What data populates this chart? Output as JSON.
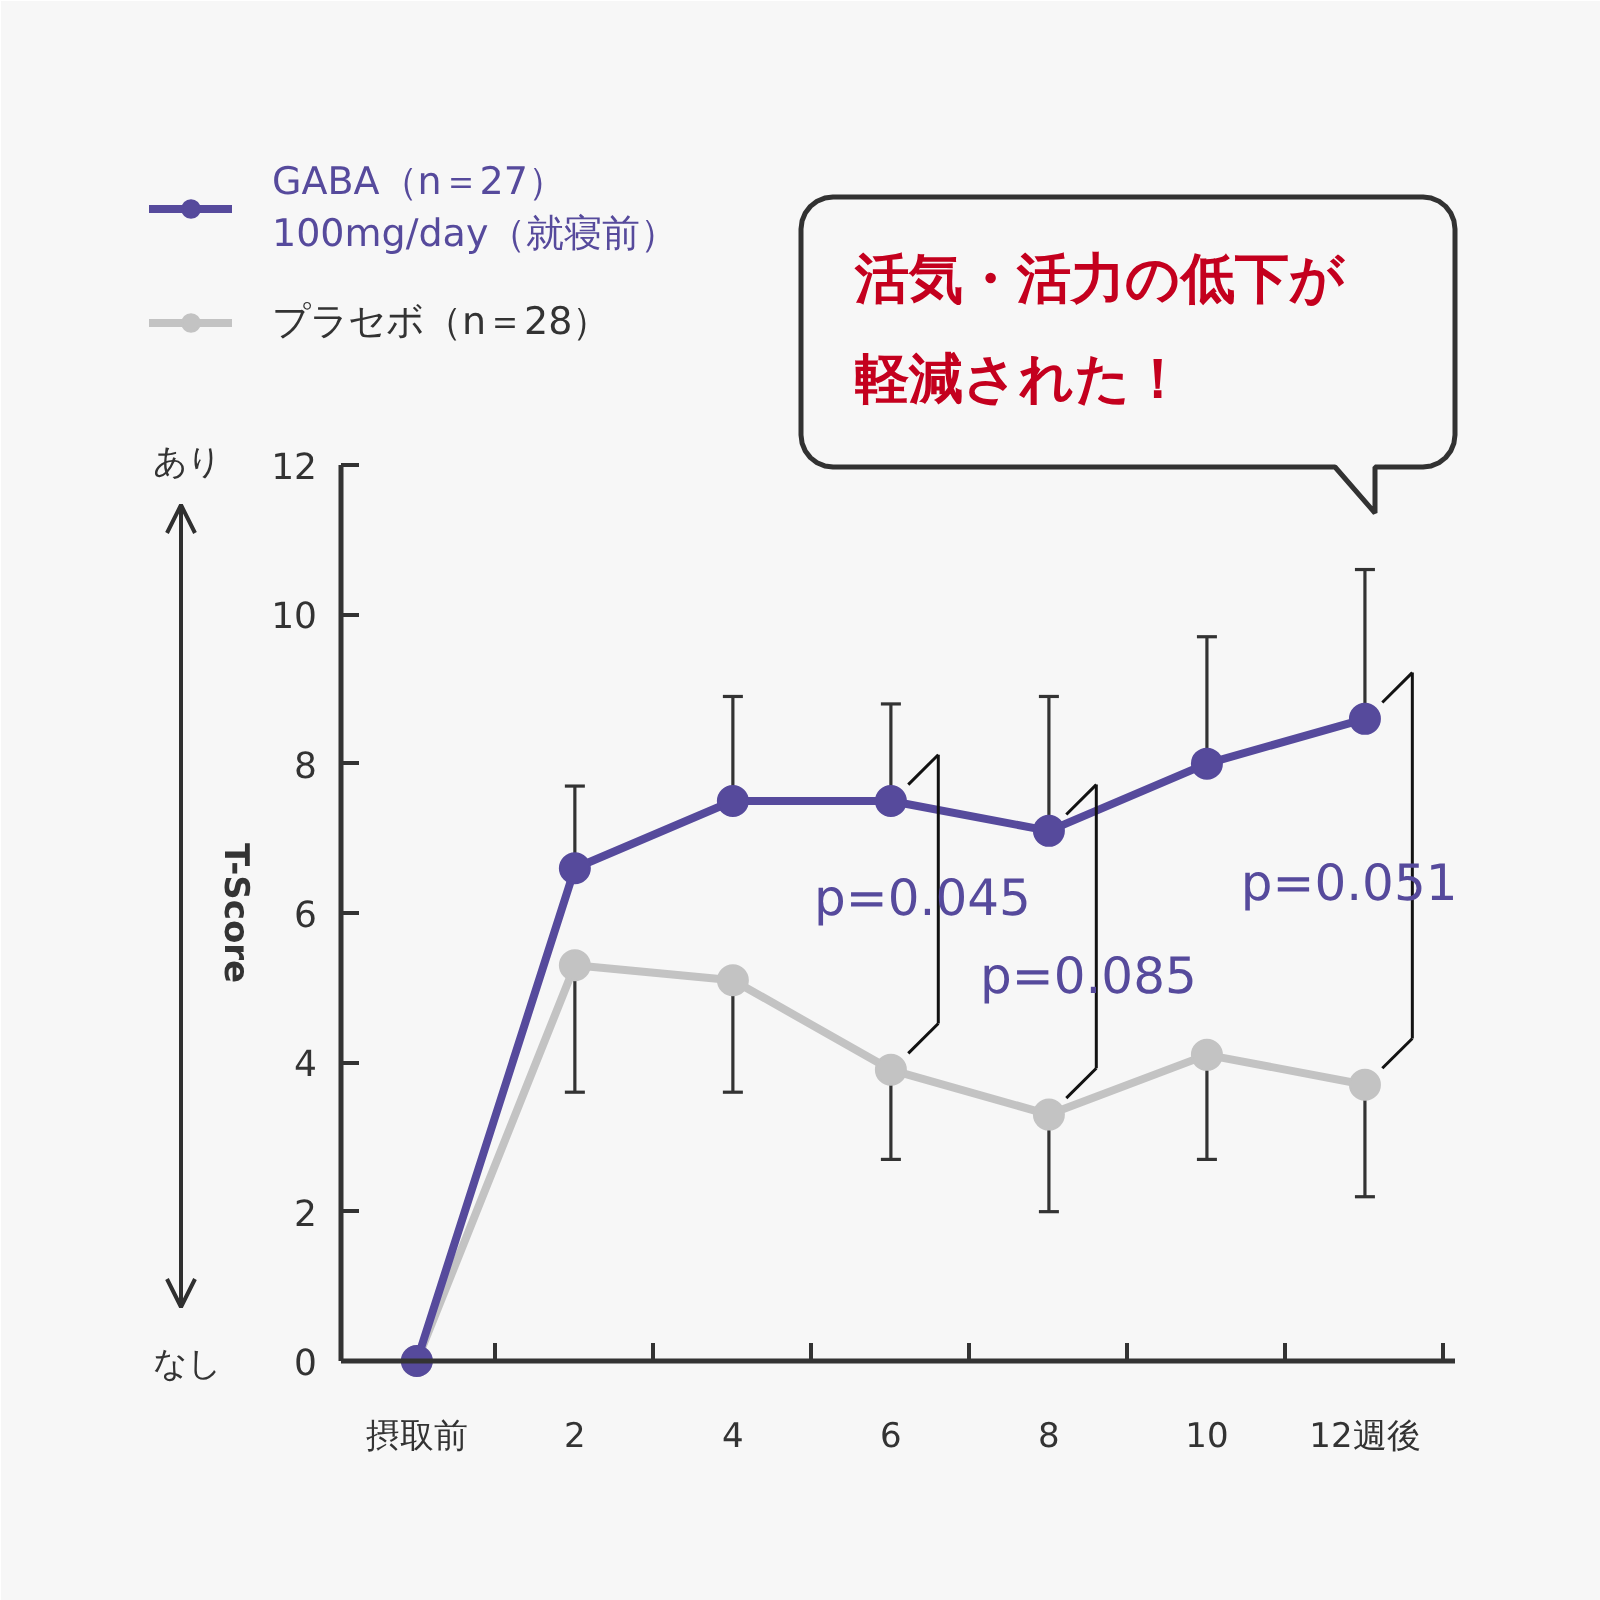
{
  "chart_data": {
    "type": "line",
    "ylabel": "T-Score",
    "categories": [
      "摂取前",
      "2",
      "4",
      "6",
      "8",
      "10",
      "12週後"
    ],
    "series": [
      {
        "name": "GABA（n＝27）\n100mg/day（就寝前）",
        "color": "#564a9c",
        "values": [
          0,
          6.6,
          7.5,
          7.5,
          7.1,
          8.0,
          8.6
        ],
        "errors": [
          null,
          [
            6.6,
            7.7
          ],
          [
            7.5,
            8.9
          ],
          [
            7.5,
            8.8
          ],
          [
            7.1,
            8.9
          ],
          [
            8.0,
            9.7
          ],
          [
            8.6,
            10.6
          ]
        ]
      },
      {
        "name": "プラセボ（n＝28）",
        "color": "#c3c3c3",
        "values": [
          0,
          5.3,
          5.1,
          3.9,
          3.3,
          4.1,
          3.7
        ],
        "errors": [
          null,
          [
            3.6,
            5.3
          ],
          [
            3.6,
            5.1
          ],
          [
            2.7,
            3.9
          ],
          [
            2.0,
            3.3
          ],
          [
            2.7,
            4.1
          ],
          [
            2.2,
            3.7
          ]
        ]
      }
    ],
    "ylim": [
      0,
      12
    ],
    "yticks": [
      0,
      2,
      4,
      6,
      8,
      10,
      12
    ],
    "grid": false,
    "legend": "top left",
    "marker": "circle",
    "line_style": "solid",
    "annotations": [
      "あり",
      "なし",
      "活気・活力の低下が軽減された！",
      "p=0.045",
      "p=0.085",
      "p=0.051"
    ]
  }
}
